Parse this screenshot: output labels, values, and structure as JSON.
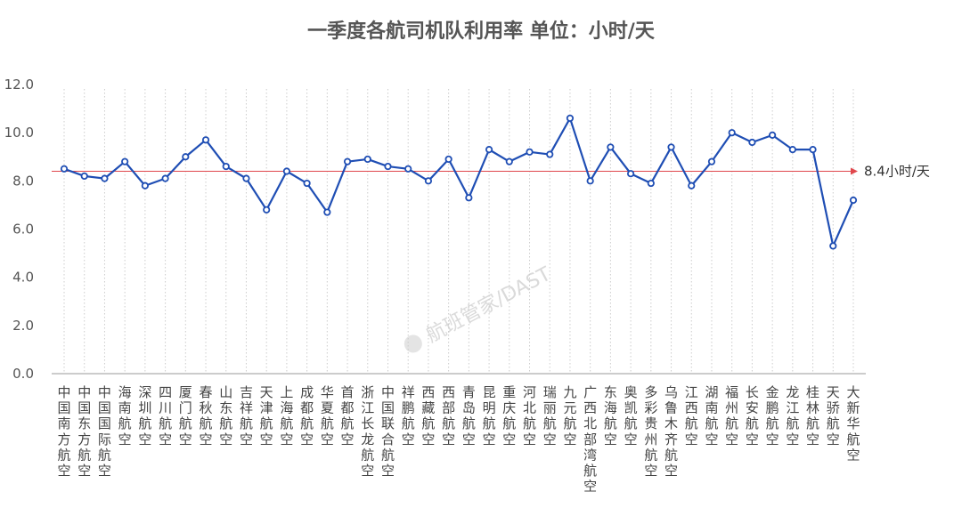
{
  "chart_data": {
    "type": "line",
    "title": "一季度各航司机队利用率 单位：小时/天",
    "xlabel": "",
    "ylabel": "",
    "ylim": [
      0,
      12
    ],
    "yticks": [
      "0.0",
      "2.0",
      "4.0",
      "6.0",
      "8.0",
      "10.0",
      "12.0"
    ],
    "grid": "vertical dotted",
    "categories": [
      "中国南方航空",
      "中国东方航空",
      "中国国际航空",
      "海南航空",
      "深圳航空",
      "四川航空",
      "厦门航空",
      "春秋航空",
      "山东航空",
      "吉祥航空",
      "天津航空",
      "上海航空",
      "成都航空",
      "华夏航空",
      "首都航空",
      "浙江长龙航空",
      "中国联合航空",
      "祥鹏航空",
      "西藏航空",
      "西部航空",
      "青岛航空",
      "昆明航空",
      "重庆航空",
      "河北航空",
      "瑞丽航空",
      "九元航空",
      "广西北部湾航空",
      "东海航空",
      "奥凯航空",
      "多彩贵州航空",
      "乌鲁木齐航空",
      "江西航空",
      "湖南航空",
      "福州航空",
      "长安航空",
      "金鹏航空",
      "龙江航空",
      "桂林航空",
      "天骄航空",
      "大新华航空"
    ],
    "series": [
      {
        "values": [
          8.5,
          8.2,
          8.1,
          8.8,
          7.8,
          8.1,
          9.0,
          9.7,
          8.6,
          8.1,
          6.8,
          8.4,
          7.9,
          6.7,
          8.8,
          8.9,
          8.6,
          8.5,
          8.0,
          8.9,
          7.3,
          9.3,
          8.8,
          9.2,
          9.1,
          10.6,
          8.0,
          9.4,
          8.3,
          7.9,
          9.4,
          7.8,
          8.8,
          10.0,
          9.6,
          9.9,
          9.3,
          9.3,
          5.3,
          7.2
        ]
      }
    ],
    "reference_line": {
      "value": 8.4,
      "label": "8.4小时/天"
    },
    "colors": {
      "line": "#1f4eb4",
      "marker_fill": "#ffffff",
      "reference": "#e0474c",
      "grid": "#cccccc",
      "axis": "#999999"
    },
    "watermark": "航班管家/DAST"
  }
}
